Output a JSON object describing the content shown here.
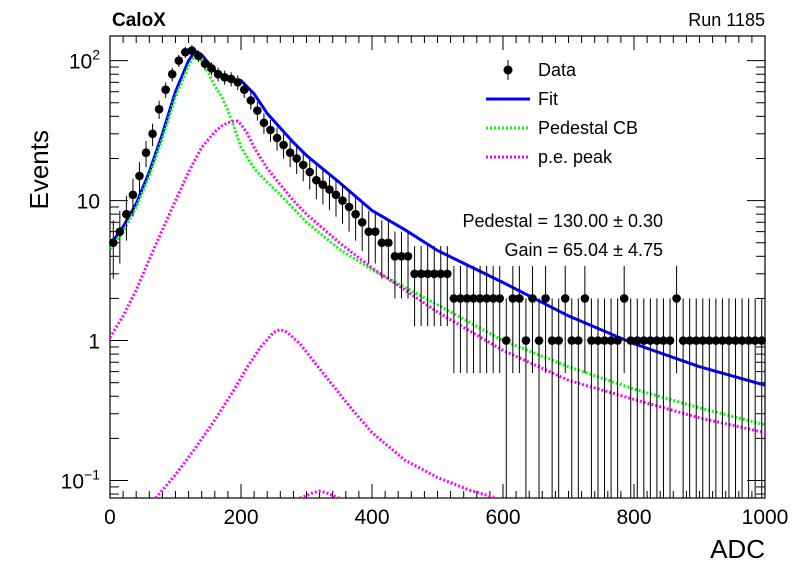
{
  "header": {
    "left_title": "CaloX",
    "right_title": "Run 1185"
  },
  "chart_data": {
    "type": "scatter",
    "xlabel": "ADC",
    "ylabel": "Events",
    "xlim": [
      0,
      1000
    ],
    "ylim": [
      0.075,
      150
    ],
    "yscale": "log",
    "x_ticks": [
      0,
      200,
      400,
      600,
      800,
      1000
    ],
    "y_ticks": [
      {
        "value": 0.1,
        "label": "10",
        "exp": "−1"
      },
      {
        "value": 1,
        "label": "1",
        "exp": ""
      },
      {
        "value": 10,
        "label": "10",
        "exp": ""
      },
      {
        "value": 100,
        "label": "10",
        "exp": "2"
      }
    ],
    "legend": {
      "placement": "top-right",
      "entries": [
        {
          "name": "Data",
          "style": "marker",
          "color": "#000000"
        },
        {
          "name": "Fit",
          "style": "line",
          "color": "#0000ff"
        },
        {
          "name": "Pedestal CB",
          "style": "dotted",
          "color": "#00ff00"
        },
        {
          "name": "p.e. peak",
          "style": "dotted",
          "color": "#ff00ff"
        }
      ]
    },
    "annotations": [
      "Pedestal = 130.00 ± 0.30",
      "Gain = 65.04 ± 4.75"
    ],
    "series": [
      {
        "name": "Data",
        "type": "points",
        "color": "#000000",
        "x": [
          5,
          15,
          25,
          35,
          45,
          55,
          65,
          75,
          85,
          95,
          105,
          115,
          125,
          135,
          145,
          155,
          165,
          175,
          185,
          195,
          205,
          215,
          225,
          235,
          245,
          255,
          265,
          275,
          285,
          295,
          305,
          315,
          325,
          335,
          345,
          355,
          365,
          375,
          385,
          395,
          405,
          415,
          425,
          435,
          445,
          455,
          465,
          475,
          485,
          495,
          505,
          515,
          525,
          535,
          545,
          555,
          565,
          575,
          585,
          595,
          605,
          615,
          625,
          635,
          645,
          655,
          665,
          675,
          685,
          695,
          705,
          715,
          725,
          735,
          745,
          755,
          765,
          775,
          785,
          795,
          805,
          815,
          825,
          835,
          845,
          855,
          865,
          875,
          885,
          895,
          905,
          915,
          925,
          935,
          945,
          955,
          965,
          975,
          985,
          995
        ],
        "y": [
          5,
          6,
          8,
          11,
          15,
          22,
          30,
          45,
          62,
          80,
          100,
          115,
          118,
          108,
          95,
          88,
          80,
          76,
          74,
          70,
          62,
          52,
          44,
          36,
          32,
          28,
          25,
          22,
          20,
          18,
          16,
          14,
          13,
          12,
          11,
          10,
          9,
          8,
          7,
          6,
          6,
          5,
          5,
          4,
          4,
          4,
          3,
          3,
          3,
          3,
          3,
          3,
          2,
          2,
          2,
          2,
          2,
          2,
          2,
          2,
          1,
          2,
          2,
          1,
          2,
          1,
          2,
          1,
          1,
          2,
          1,
          1,
          2,
          1,
          1,
          1,
          1,
          1,
          2,
          1,
          1,
          1,
          1,
          1,
          1,
          1,
          2,
          1,
          1,
          1,
          1,
          1,
          1,
          1,
          1,
          1,
          1,
          1,
          1,
          1
        ]
      },
      {
        "name": "Fit",
        "type": "curve",
        "color": "#0000ff",
        "x": [
          0,
          20,
          40,
          60,
          80,
          100,
          120,
          130,
          140,
          160,
          180,
          200,
          220,
          240,
          260,
          280,
          300,
          350,
          400,
          450,
          500,
          600,
          700,
          800,
          900,
          1000
        ],
        "y": [
          4.8,
          6.5,
          9.5,
          16,
          30,
          60,
          100,
          117,
          110,
          85,
          74,
          72,
          58,
          42,
          33,
          26,
          21,
          13.5,
          8.5,
          6.2,
          4.4,
          2.6,
          1.5,
          0.95,
          0.65,
          0.48
        ]
      },
      {
        "name": "Pedestal CB",
        "type": "curve",
        "color": "#00ff00",
        "x": [
          0,
          20,
          40,
          60,
          80,
          100,
          120,
          130,
          140,
          150,
          160,
          170,
          180,
          190,
          200,
          220,
          240,
          260,
          280,
          300,
          350,
          400,
          450,
          500,
          600,
          700,
          800,
          900,
          1000
        ],
        "y": [
          4.5,
          6,
          9,
          15,
          28,
          55,
          92,
          110,
          100,
          82,
          66,
          56,
          44,
          33,
          24,
          17,
          13.5,
          11,
          8.8,
          7,
          4.5,
          3.2,
          2.4,
          1.8,
          1.0,
          0.65,
          0.45,
          0.33,
          0.25
        ]
      },
      {
        "name": "p.e. peak (1st)",
        "type": "curve",
        "color": "#ff00ff",
        "x": [
          0,
          20,
          40,
          60,
          80,
          100,
          120,
          140,
          160,
          170,
          180,
          190,
          195,
          200,
          210,
          220,
          240,
          260,
          280,
          300,
          350,
          400,
          450,
          500,
          600,
          700,
          800,
          900,
          1000
        ],
        "y": [
          1.05,
          1.5,
          2.3,
          3.8,
          6.2,
          10,
          16,
          24,
          31,
          34,
          36,
          37,
          37,
          35,
          30,
          24,
          17,
          13,
          10,
          8,
          5,
          3.3,
          2.3,
          1.6,
          0.85,
          0.52,
          0.38,
          0.28,
          0.22
        ]
      },
      {
        "name": "p.e. peak (2nd)",
        "type": "curve",
        "color": "#ff00ff",
        "x": [
          70,
          100,
          130,
          160,
          190,
          210,
          230,
          250,
          260,
          270,
          290,
          310,
          340,
          370,
          400,
          450,
          500,
          550,
          590
        ],
        "y": [
          0.075,
          0.11,
          0.17,
          0.27,
          0.45,
          0.65,
          0.9,
          1.15,
          1.2,
          1.15,
          0.95,
          0.72,
          0.48,
          0.32,
          0.22,
          0.14,
          0.105,
          0.085,
          0.075
        ]
      },
      {
        "name": "p.e. peak (3rd)",
        "type": "curve",
        "color": "#ff00ff",
        "x": [
          290,
          300,
          310,
          320,
          330,
          340,
          350
        ],
        "y": [
          0.075,
          0.078,
          0.082,
          0.084,
          0.082,
          0.078,
          0.075
        ]
      }
    ]
  }
}
